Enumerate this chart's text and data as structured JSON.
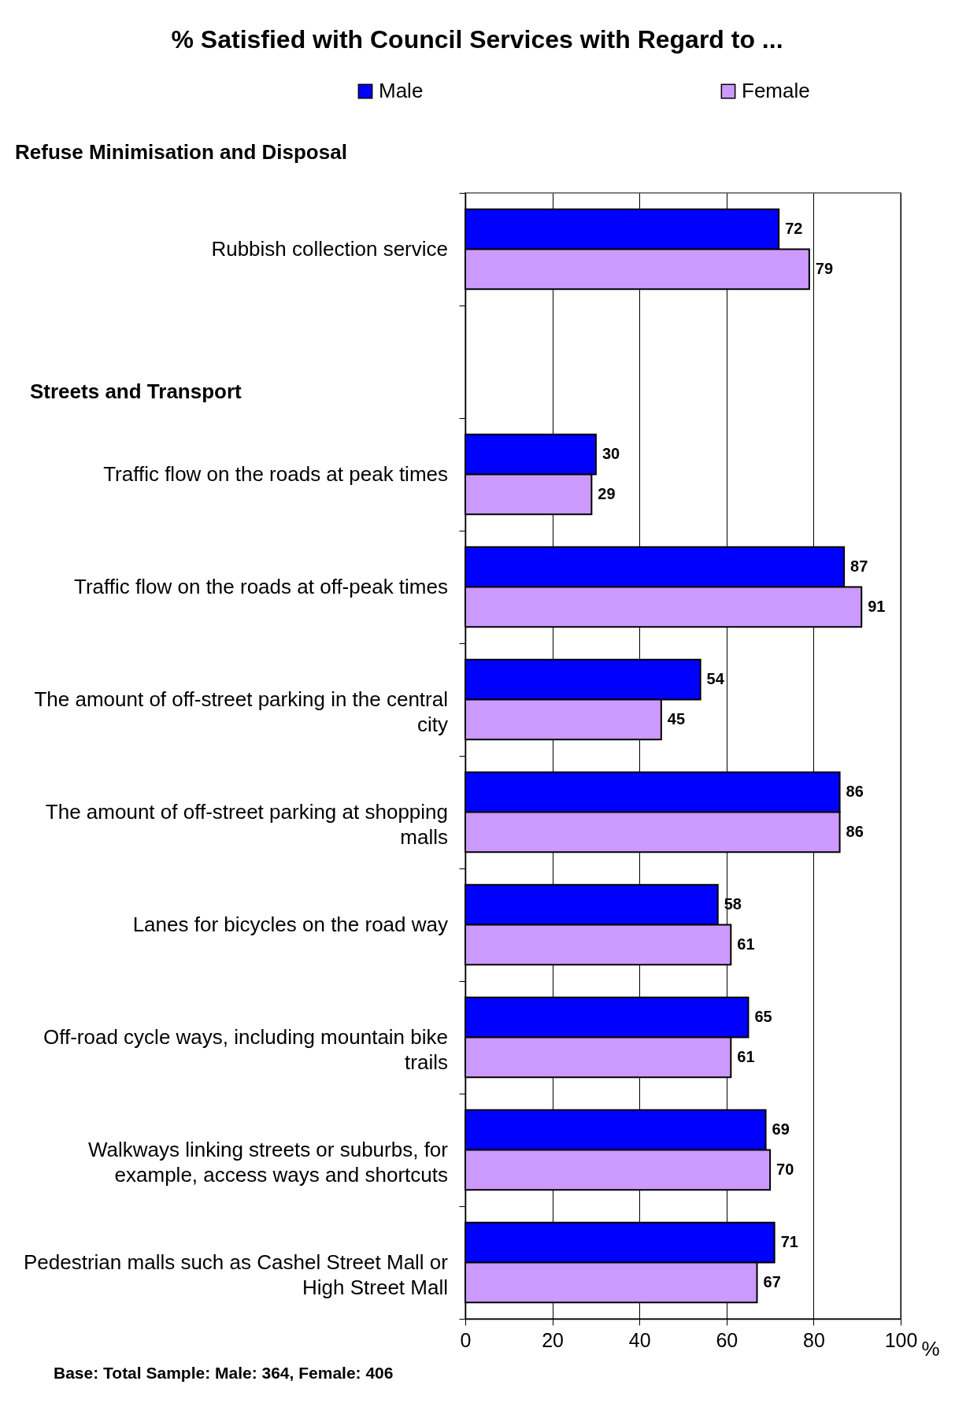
{
  "chart_data": {
    "type": "bar",
    "orientation": "horizontal",
    "title": "% Satisfied with Council Services with Regard to ...",
    "xlabel": "%",
    "categories": [
      "Rubbish collection service",
      null,
      "Traffic flow on the roads at peak times",
      "Traffic flow on the roads at off-peak times",
      "The amount of off-street parking in the central city",
      "The amount of off-street parking at shopping malls",
      "Lanes for bicycles on the road way",
      "Off-road cycle ways, including mountain bike trails",
      "Walkways linking streets or suburbs, for example, access ways and shortcuts",
      "Pedestrian malls such as Cashel Street Mall or High Street Mall"
    ],
    "series": [
      {
        "name": "Male",
        "color": "#0000ff",
        "values": [
          72,
          null,
          30,
          87,
          54,
          86,
          58,
          65,
          69,
          71
        ]
      },
      {
        "name": "Female",
        "color": "#cc99ff",
        "values": [
          79,
          null,
          29,
          91,
          45,
          86,
          61,
          61,
          70,
          67
        ]
      }
    ],
    "xlim": [
      0,
      100
    ],
    "xticks": [
      0,
      20,
      40,
      60,
      80,
      100
    ],
    "grid": "x",
    "legend": "top",
    "data_labels": true,
    "annotations": [
      "Refuse Minimisation and Disposal",
      "Streets and Transport",
      "Base:  Total Sample:  Male: 364, Female: 406"
    ]
  }
}
